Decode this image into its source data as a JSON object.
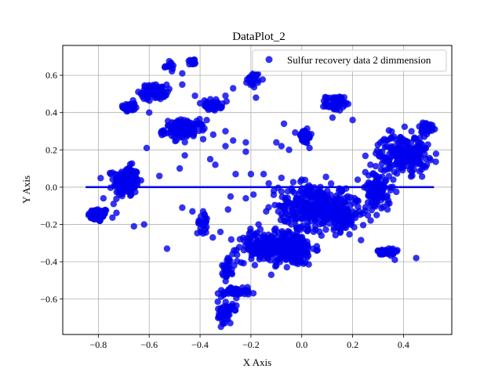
{
  "chart_data": {
    "type": "scatter",
    "title": "DataPlot_2",
    "xlabel": "X Axis",
    "ylabel": "Y Axis",
    "xlim": [
      -0.94,
      0.59
    ],
    "ylim": [
      -0.79,
      0.76
    ],
    "xticks": [
      -0.8,
      -0.6,
      -0.4,
      -0.2,
      0.0,
      0.2,
      0.4
    ],
    "xtick_labels": [
      "−0.8",
      "−0.6",
      "−0.4",
      "−0.2",
      "0.0",
      "0.2",
      "0.4"
    ],
    "yticks": [
      -0.6,
      -0.4,
      -0.2,
      0.0,
      0.2,
      0.4,
      0.6
    ],
    "ytick_labels": [
      "−0.6",
      "−0.4",
      "−0.2",
      "0.0",
      "0.2",
      "0.4",
      "0.6"
    ],
    "grid": true,
    "legend": {
      "position": "top-right",
      "entries": [
        "Sulfur recovery data 2 dimmension"
      ]
    },
    "colors": {
      "points": "#0000ee",
      "line": "#0000ee",
      "grid": "#b0b0b0"
    },
    "line": {
      "x": [
        -0.85,
        0.52
      ],
      "y": [
        0.0,
        0.0
      ]
    },
    "series": [
      {
        "name": "Sulfur recovery data 2 dimmension",
        "clusters": [
          {
            "cx": -0.8,
            "cy": -0.15,
            "sx": 0.02,
            "sy": 0.018,
            "n": 70
          },
          {
            "cx": -0.69,
            "cy": 0.03,
            "sx": 0.025,
            "sy": 0.04,
            "n": 180
          },
          {
            "cx": -0.68,
            "cy": 0.43,
            "sx": 0.012,
            "sy": 0.015,
            "n": 35
          },
          {
            "cx": -0.58,
            "cy": 0.51,
            "sx": 0.025,
            "sy": 0.02,
            "n": 90
          },
          {
            "cx": -0.52,
            "cy": 0.65,
            "sx": 0.01,
            "sy": 0.01,
            "n": 15
          },
          {
            "cx": -0.43,
            "cy": 0.67,
            "sx": 0.012,
            "sy": 0.01,
            "n": 15
          },
          {
            "cx": -0.46,
            "cy": 0.31,
            "sx": 0.04,
            "sy": 0.025,
            "n": 120
          },
          {
            "cx": -0.35,
            "cy": 0.44,
            "sx": 0.018,
            "sy": 0.015,
            "n": 40
          },
          {
            "cx": -0.39,
            "cy": -0.19,
            "sx": 0.01,
            "sy": 0.03,
            "n": 25
          },
          {
            "cx": -0.19,
            "cy": 0.58,
            "sx": 0.012,
            "sy": 0.02,
            "n": 35
          },
          {
            "cx": 0.13,
            "cy": 0.45,
            "sx": 0.018,
            "sy": 0.02,
            "n": 55
          },
          {
            "cx": 0.01,
            "cy": 0.27,
            "sx": 0.015,
            "sy": 0.02,
            "n": 45
          },
          {
            "cx": -0.15,
            "cy": -0.32,
            "sx": 0.05,
            "sy": 0.04,
            "n": 170
          },
          {
            "cx": -0.03,
            "cy": -0.33,
            "sx": 0.04,
            "sy": 0.045,
            "n": 180
          },
          {
            "cx": 0.03,
            "cy": -0.1,
            "sx": 0.06,
            "sy": 0.06,
            "n": 260
          },
          {
            "cx": 0.15,
            "cy": -0.14,
            "sx": 0.04,
            "sy": 0.05,
            "n": 160
          },
          {
            "cx": 0.3,
            "cy": -0.02,
            "sx": 0.025,
            "sy": 0.06,
            "n": 110
          },
          {
            "cx": 0.4,
            "cy": 0.18,
            "sx": 0.05,
            "sy": 0.05,
            "n": 200
          },
          {
            "cx": 0.49,
            "cy": 0.32,
            "sx": 0.015,
            "sy": 0.015,
            "n": 40
          },
          {
            "cx": 0.34,
            "cy": -0.35,
            "sx": 0.02,
            "sy": 0.015,
            "n": 40
          },
          {
            "cx": -0.3,
            "cy": -0.67,
            "sx": 0.015,
            "sy": 0.03,
            "n": 60
          },
          {
            "cx": -0.26,
            "cy": -0.56,
            "sx": 0.03,
            "sy": 0.012,
            "n": 50
          },
          {
            "cx": -0.29,
            "cy": -0.43,
            "sx": 0.012,
            "sy": 0.03,
            "n": 30
          }
        ],
        "points": [
          [
            -0.53,
            -0.33
          ],
          [
            -0.56,
            0.06
          ],
          [
            -0.61,
            0.21
          ],
          [
            -0.48,
            0.1
          ],
          [
            -0.46,
            0.17
          ],
          [
            -0.43,
            -0.13
          ],
          [
            -0.47,
            -0.11
          ],
          [
            -0.3,
            0.22
          ],
          [
            -0.27,
            0.25
          ],
          [
            -0.22,
            0.24
          ],
          [
            -0.3,
            0.3
          ],
          [
            -0.28,
            -0.05
          ],
          [
            -0.26,
            0.07
          ],
          [
            -0.2,
            0.07
          ],
          [
            -0.15,
            0.07
          ],
          [
            -0.13,
            0.02
          ],
          [
            -0.19,
            -0.04
          ],
          [
            -0.14,
            -0.13
          ],
          [
            -0.11,
            -0.02
          ],
          [
            -0.08,
            0.05
          ],
          [
            -0.1,
            0.24
          ],
          [
            -0.08,
            0.22
          ],
          [
            -0.05,
            0.2
          ],
          [
            -0.07,
            0.34
          ],
          [
            0.2,
            0.36
          ],
          [
            -0.62,
            -0.2
          ],
          [
            -0.66,
            -0.21
          ],
          [
            -0.74,
            -0.09
          ],
          [
            -0.78,
            -0.06
          ],
          [
            -0.6,
            0.4
          ],
          [
            -0.4,
            0.45
          ],
          [
            -0.42,
            0.49
          ],
          [
            -0.47,
            0.61
          ],
          [
            -0.47,
            0.55
          ],
          [
            -0.34,
            0.12
          ],
          [
            -0.22,
            0.19
          ],
          [
            -0.18,
            0.48
          ],
          [
            -0.27,
            0.53
          ],
          [
            -0.3,
            0.49
          ],
          [
            -0.55,
            0.28
          ],
          [
            -0.36,
            0.15
          ],
          [
            -0.12,
            -0.47
          ],
          [
            -0.1,
            -0.42
          ],
          [
            -0.32,
            -0.24
          ],
          [
            -0.35,
            -0.27
          ],
          [
            -0.29,
            -0.12
          ],
          [
            -0.05,
            -0.15
          ],
          [
            0.0,
            0.04
          ],
          [
            -0.17,
            -0.2
          ],
          [
            0.45,
            -0.38
          ],
          [
            0.36,
            0.04
          ],
          [
            0.22,
            0.04
          ],
          [
            0.25,
            0.08
          ],
          [
            0.27,
            0.12
          ],
          [
            -0.22,
            -0.06
          ]
        ]
      }
    ]
  }
}
